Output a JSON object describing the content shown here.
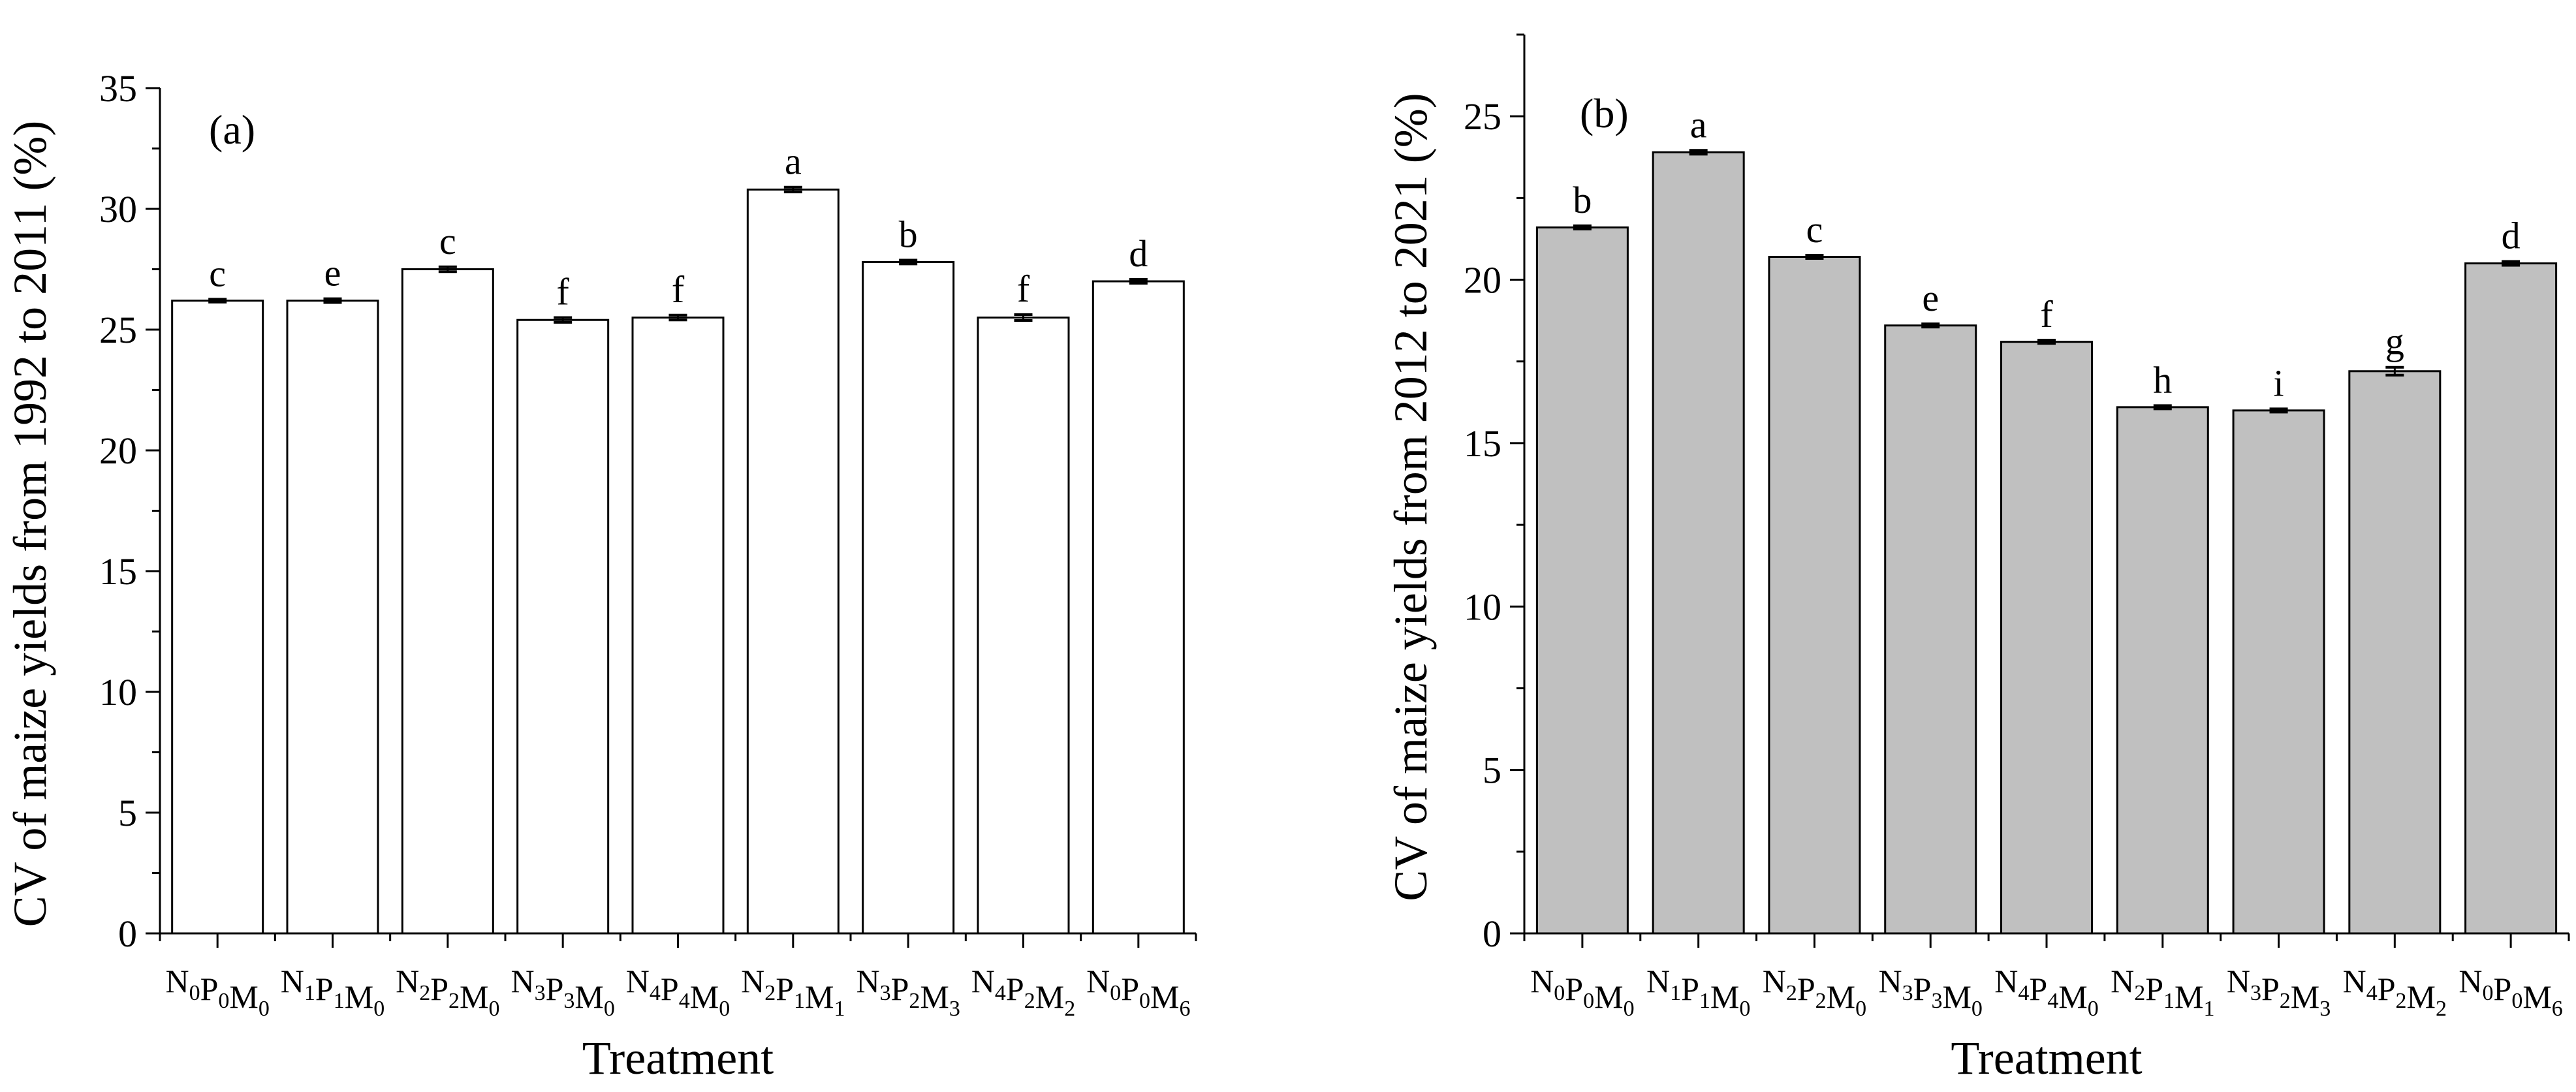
{
  "chart_data": [
    {
      "type": "bar",
      "panel_label": "(a)",
      "xlabel": "Treatment",
      "ylabel": "CV of maize yields from 1992 to 2011 (%)",
      "ylim": [
        0,
        35
      ],
      "yticks": [
        0,
        5,
        10,
        15,
        20,
        25,
        30,
        35
      ],
      "bar_color": "#ffffff",
      "categories": [
        {
          "N": "0",
          "P": "0",
          "M": "0"
        },
        {
          "N": "1",
          "P": "1",
          "M": "0"
        },
        {
          "N": "2",
          "P": "2",
          "M": "0"
        },
        {
          "N": "3",
          "P": "3",
          "M": "0"
        },
        {
          "N": "4",
          "P": "4",
          "M": "0"
        },
        {
          "N": "2",
          "P": "1",
          "M": "1"
        },
        {
          "N": "3",
          "P": "2",
          "M": "3"
        },
        {
          "N": "4",
          "P": "2",
          "M": "2"
        },
        {
          "N": "0",
          "P": "0",
          "M": "6"
        }
      ],
      "values": [
        26.2,
        26.2,
        27.5,
        25.4,
        25.5,
        30.8,
        27.8,
        25.5,
        27.0
      ],
      "errors": [
        0.06,
        0.08,
        0.1,
        0.1,
        0.1,
        0.1,
        0.08,
        0.12,
        0.08
      ],
      "letters": [
        "c",
        "e",
        "c",
        "f",
        "f",
        "a",
        "b",
        "f",
        "d"
      ]
    },
    {
      "type": "bar",
      "panel_label": "(b)",
      "xlabel": "Treatment",
      "ylabel": "CV of maize yields from 2012 to 2021 (%)",
      "ylim": [
        0,
        27.5
      ],
      "yticks": [
        0,
        5,
        10,
        15,
        20,
        25
      ],
      "bar_color": "#c0c0c0",
      "categories": [
        {
          "N": "0",
          "P": "0",
          "M": "0"
        },
        {
          "N": "1",
          "P": "1",
          "M": "0"
        },
        {
          "N": "2",
          "P": "2",
          "M": "0"
        },
        {
          "N": "3",
          "P": "3",
          "M": "0"
        },
        {
          "N": "4",
          "P": "4",
          "M": "0"
        },
        {
          "N": "2",
          "P": "1",
          "M": "1"
        },
        {
          "N": "3",
          "P": "2",
          "M": "3"
        },
        {
          "N": "4",
          "P": "2",
          "M": "2"
        },
        {
          "N": "0",
          "P": "0",
          "M": "6"
        }
      ],
      "values": [
        21.6,
        23.9,
        20.7,
        18.6,
        18.1,
        16.1,
        16.0,
        17.2,
        20.5
      ],
      "errors": [
        0.05,
        0.06,
        0.05,
        0.05,
        0.05,
        0.05,
        0.05,
        0.12,
        0.06
      ],
      "letters": [
        "b",
        "a",
        "c",
        "e",
        "f",
        "h",
        "i",
        "g",
        "d"
      ]
    }
  ]
}
